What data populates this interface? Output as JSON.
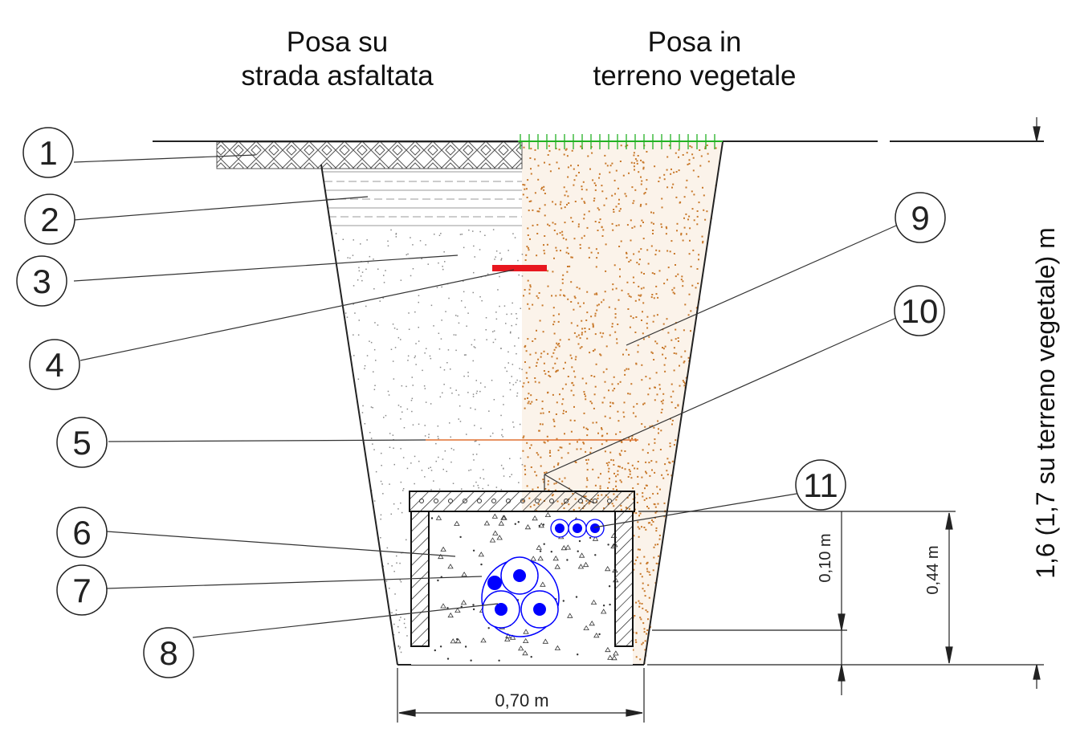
{
  "titles": {
    "left_line1": "Posa su",
    "left_line2": "strada asfaltata",
    "right_line1": "Posa in",
    "right_line2": "terreno vegetale"
  },
  "callouts": [
    "1",
    "2",
    "3",
    "4",
    "5",
    "6",
    "7",
    "8",
    "9",
    "10",
    "11"
  ],
  "dimensions": {
    "width": "0,70 m",
    "cover": "0,10 m",
    "duct_height": "0,44 m",
    "depth": "1,6 (1,7 su terreno vegetale) m"
  },
  "colors": {
    "soil": "#c8782a",
    "marker_tape": "#e8171f",
    "grass": "#22b122",
    "cable": "#0000ff",
    "warning_line": "#e07030"
  }
}
